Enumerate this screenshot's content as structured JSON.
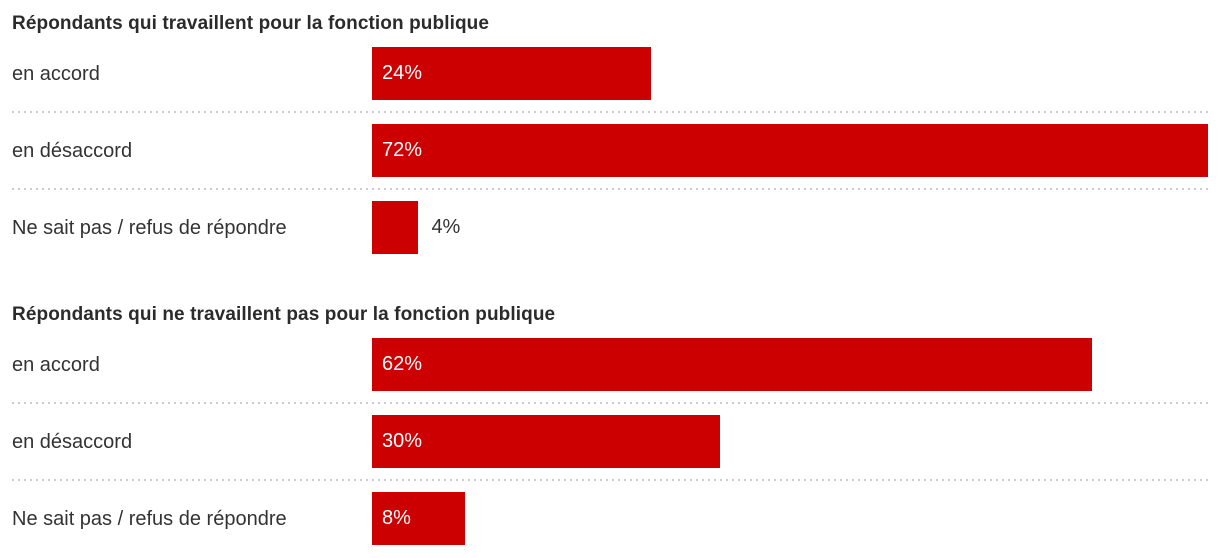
{
  "colors": {
    "bar": "#cc0000",
    "bar_label": "#ffffff",
    "text": "#333333",
    "title": "#2b2b2b",
    "divider": "#cccccc"
  },
  "chart_data": {
    "type": "bar",
    "orientation": "horizontal",
    "value_unit": "%",
    "axis_max": 72,
    "grid": false,
    "legend": false,
    "groups": [
      {
        "title": "Répondants qui travaillent pour la fonction publique",
        "categories": [
          "en accord",
          "en désaccord",
          "Ne sait pas / refus de répondre"
        ],
        "values": [
          24,
          72,
          4
        ],
        "value_labels": [
          "24%",
          "72%",
          "4%"
        ]
      },
      {
        "title": "Répondants qui ne travaillent pas pour la fonction publique",
        "categories": [
          "en accord",
          "en désaccord",
          "Ne sait pas / refus de répondre"
        ],
        "values": [
          62,
          30,
          8
        ],
        "value_labels": [
          "62%",
          "30%",
          "8%"
        ]
      }
    ]
  }
}
